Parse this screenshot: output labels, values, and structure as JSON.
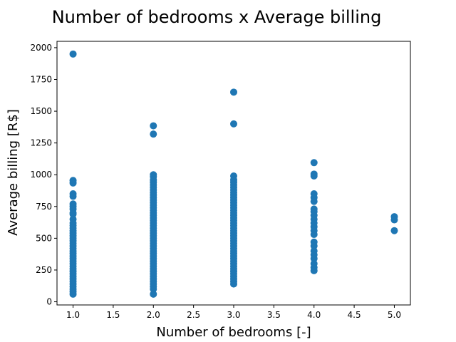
{
  "chart_data": {
    "type": "scatter",
    "title": "Number of bedrooms x Average billing",
    "xlabel": "Number of bedrooms [-]",
    "ylabel": "Average billing [R$]",
    "xlim": [
      0.8,
      5.2
    ],
    "ylim": [
      -25,
      2050
    ],
    "xticks": [
      1.0,
      1.5,
      2.0,
      2.5,
      3.0,
      3.5,
      4.0,
      4.5,
      5.0
    ],
    "xtick_labels": [
      "1.0",
      "1.5",
      "2.0",
      "2.5",
      "3.0",
      "3.5",
      "4.0",
      "4.5",
      "5.0"
    ],
    "yticks": [
      0,
      250,
      500,
      750,
      1000,
      1250,
      1500,
      1750,
      2000
    ],
    "ytick_labels": [
      "0",
      "250",
      "500",
      "750",
      "1000",
      "1250",
      "1500",
      "1750",
      "2000"
    ],
    "grid": false,
    "marker_color": "#1f77b4",
    "series": [
      {
        "points": [
          [
            1,
            1950
          ],
          [
            1,
            955
          ],
          [
            1,
            935
          ],
          [
            1,
            850
          ],
          [
            1,
            830
          ],
          [
            1,
            770
          ],
          [
            1,
            750
          ],
          [
            1,
            730
          ],
          [
            1,
            700
          ],
          [
            1,
            690
          ],
          [
            1,
            650
          ],
          [
            1,
            620
          ],
          [
            1,
            600
          ],
          [
            1,
            580
          ],
          [
            1,
            560
          ],
          [
            1,
            540
          ],
          [
            1,
            520
          ],
          [
            1,
            500
          ],
          [
            1,
            480
          ],
          [
            1,
            460
          ],
          [
            1,
            440
          ],
          [
            1,
            420
          ],
          [
            1,
            400
          ],
          [
            1,
            380
          ],
          [
            1,
            360
          ],
          [
            1,
            340
          ],
          [
            1,
            320
          ],
          [
            1,
            300
          ],
          [
            1,
            280
          ],
          [
            1,
            260
          ],
          [
            1,
            240
          ],
          [
            1,
            220
          ],
          [
            1,
            200
          ],
          [
            1,
            180
          ],
          [
            1,
            160
          ],
          [
            1,
            140
          ],
          [
            1,
            120
          ],
          [
            1,
            100
          ],
          [
            1,
            80
          ],
          [
            1,
            60
          ],
          [
            2,
            1385
          ],
          [
            2,
            1320
          ],
          [
            2,
            1000
          ],
          [
            2,
            985
          ],
          [
            2,
            960
          ],
          [
            2,
            940
          ],
          [
            2,
            920
          ],
          [
            2,
            900
          ],
          [
            2,
            880
          ],
          [
            2,
            860
          ],
          [
            2,
            840
          ],
          [
            2,
            820
          ],
          [
            2,
            800
          ],
          [
            2,
            780
          ],
          [
            2,
            760
          ],
          [
            2,
            740
          ],
          [
            2,
            720
          ],
          [
            2,
            700
          ],
          [
            2,
            680
          ],
          [
            2,
            660
          ],
          [
            2,
            640
          ],
          [
            2,
            620
          ],
          [
            2,
            600
          ],
          [
            2,
            580
          ],
          [
            2,
            560
          ],
          [
            2,
            540
          ],
          [
            2,
            520
          ],
          [
            2,
            500
          ],
          [
            2,
            480
          ],
          [
            2,
            460
          ],
          [
            2,
            440
          ],
          [
            2,
            420
          ],
          [
            2,
            400
          ],
          [
            2,
            380
          ],
          [
            2,
            360
          ],
          [
            2,
            340
          ],
          [
            2,
            320
          ],
          [
            2,
            300
          ],
          [
            2,
            280
          ],
          [
            2,
            260
          ],
          [
            2,
            240
          ],
          [
            2,
            220
          ],
          [
            2,
            200
          ],
          [
            2,
            180
          ],
          [
            2,
            160
          ],
          [
            2,
            140
          ],
          [
            2,
            120
          ],
          [
            2,
            100
          ],
          [
            2,
            60
          ],
          [
            3,
            1650
          ],
          [
            3,
            1400
          ],
          [
            3,
            990
          ],
          [
            3,
            960
          ],
          [
            3,
            940
          ],
          [
            3,
            920
          ],
          [
            3,
            900
          ],
          [
            3,
            880
          ],
          [
            3,
            860
          ],
          [
            3,
            840
          ],
          [
            3,
            820
          ],
          [
            3,
            800
          ],
          [
            3,
            780
          ],
          [
            3,
            760
          ],
          [
            3,
            740
          ],
          [
            3,
            720
          ],
          [
            3,
            700
          ],
          [
            3,
            680
          ],
          [
            3,
            660
          ],
          [
            3,
            640
          ],
          [
            3,
            620
          ],
          [
            3,
            600
          ],
          [
            3,
            580
          ],
          [
            3,
            560
          ],
          [
            3,
            540
          ],
          [
            3,
            520
          ],
          [
            3,
            500
          ],
          [
            3,
            480
          ],
          [
            3,
            460
          ],
          [
            3,
            440
          ],
          [
            3,
            420
          ],
          [
            3,
            400
          ],
          [
            3,
            380
          ],
          [
            3,
            360
          ],
          [
            3,
            340
          ],
          [
            3,
            320
          ],
          [
            3,
            300
          ],
          [
            3,
            280
          ],
          [
            3,
            260
          ],
          [
            3,
            240
          ],
          [
            3,
            220
          ],
          [
            3,
            200
          ],
          [
            3,
            180
          ],
          [
            3,
            160
          ],
          [
            3,
            140
          ],
          [
            4,
            1095
          ],
          [
            4,
            1005
          ],
          [
            4,
            990
          ],
          [
            4,
            850
          ],
          [
            4,
            820
          ],
          [
            4,
            790
          ],
          [
            4,
            730
          ],
          [
            4,
            710
          ],
          [
            4,
            680
          ],
          [
            4,
            650
          ],
          [
            4,
            620
          ],
          [
            4,
            590
          ],
          [
            4,
            560
          ],
          [
            4,
            530
          ],
          [
            4,
            470
          ],
          [
            4,
            440
          ],
          [
            4,
            400
          ],
          [
            4,
            370
          ],
          [
            4,
            340
          ],
          [
            4,
            300
          ],
          [
            4,
            270
          ],
          [
            4,
            245
          ],
          [
            5,
            670
          ],
          [
            5,
            645
          ],
          [
            5,
            560
          ]
        ]
      }
    ]
  }
}
